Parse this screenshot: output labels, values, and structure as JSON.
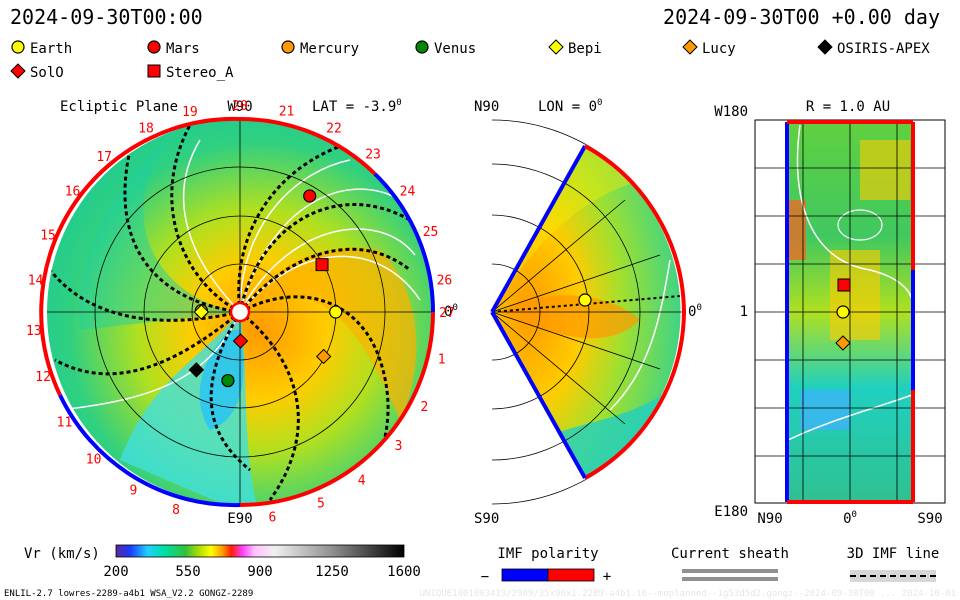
{
  "header": {
    "date_left": "2024-09-30T00:00",
    "date_right": "2024-09-30T00 +0.00 day"
  },
  "legend": [
    {
      "name": "Earth",
      "marker": "circle",
      "color": "#ffff00"
    },
    {
      "name": "Mars",
      "marker": "circle",
      "color": "#ff0000"
    },
    {
      "name": "Mercury",
      "marker": "circle",
      "color": "#ff9900"
    },
    {
      "name": "Venus",
      "marker": "circle",
      "color": "#008800"
    },
    {
      "name": "Bepi",
      "marker": "diamond",
      "color": "#ffff00"
    },
    {
      "name": "Lucy",
      "marker": "diamond",
      "color": "#ff9900"
    },
    {
      "name": "OSIRIS-APEX",
      "marker": "diamond",
      "color": "#000000"
    },
    {
      "name": "SolO",
      "marker": "diamond",
      "color": "#ff0000"
    },
    {
      "name": "Stereo_A",
      "marker": "square",
      "color": "#ff0000"
    }
  ],
  "panels": {
    "ecliptic": {
      "title": "Ecliptic Plane",
      "lat_label": "LAT = -3.9",
      "lat_degree": "0",
      "top_label": "W90",
      "bottom_label": "E90",
      "right_label": "0",
      "right_degree": "0",
      "rotation_numbers": [
        "1",
        "2",
        "3",
        "4",
        "5",
        "6",
        "8",
        "9",
        "10",
        "11",
        "12",
        "13",
        "14",
        "15",
        "16",
        "17",
        "18",
        "19",
        "20",
        "21",
        "22",
        "23",
        "24",
        "25",
        "26",
        "27"
      ]
    },
    "meridional": {
      "top_label": "N90",
      "lon_label": "LON = 0",
      "lon_degree": "0",
      "bottom_label": "S90",
      "right_label": "0",
      "right_degree": "0"
    },
    "radial": {
      "r_label": "R = 1.0 AU",
      "top_left": "W180",
      "mid_left": "1",
      "bottom_left": "E180",
      "x_left": "N90",
      "x_mid": "0",
      "x_mid_degree": "0",
      "x_right": "S90"
    }
  },
  "colorbar": {
    "label": "Vr (km/s)",
    "ticks": [
      "200",
      "550",
      "900",
      "1250",
      "1600"
    ],
    "range": [
      200,
      1600
    ]
  },
  "imf_polarity": {
    "label": "IMF polarity",
    "minus": "−",
    "plus": "+",
    "negative_color": "#0000ff",
    "positive_color": "#ff0000"
  },
  "current_sheath": {
    "label": "Current sheath"
  },
  "imf_line": {
    "label": "3D IMF line"
  },
  "footer": {
    "left": "ENLIL-2.7 lowres-2289-a4b1 WSA_V2.2 GONGZ-2289",
    "right": "UNIQUE1001003413/2989/35x90x1.2289-a4b1.16--moplanned--1g53d5d2.gongz--2024-09-30T00 ... 2024-10-01"
  },
  "chart_data": {
    "type": "heatmap",
    "title": "",
    "colorscale": {
      "quantity": "Vr (km/s)",
      "min": 200,
      "max": 1600
    },
    "bodies_ecliptic": [
      {
        "name": "Earth",
        "r_au": 0.99,
        "lon_deg": 0
      },
      {
        "name": "Mars",
        "r_au": 1.4,
        "lon_deg": 59
      },
      {
        "name": "Mercury",
        "r_au": 0.4,
        "lon_deg": 178
      },
      {
        "name": "Venus",
        "r_au": 0.72,
        "lon_deg": 260
      },
      {
        "name": "Bepi",
        "r_au": 0.4,
        "lon_deg": 180
      },
      {
        "name": "Lucy",
        "r_au": 0.98,
        "lon_deg": -28
      },
      {
        "name": "OSIRIS-APEX",
        "r_au": 0.75,
        "lon_deg": 233
      },
      {
        "name": "SolO",
        "r_au": 0.3,
        "lon_deg": 271
      },
      {
        "name": "Stereo_A",
        "r_au": 0.98,
        "lon_deg": 30
      }
    ]
  }
}
